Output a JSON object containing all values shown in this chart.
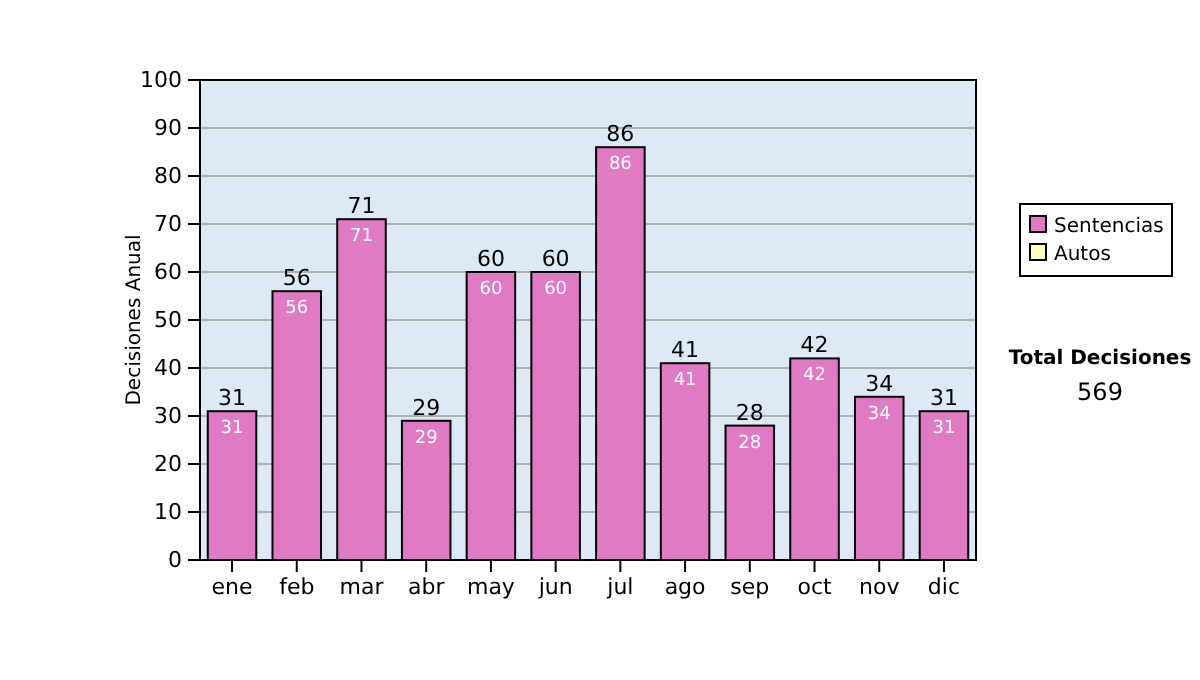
{
  "chart_data": {
    "type": "bar",
    "ylabel": "Decisiones Anual",
    "categories": [
      "ene",
      "feb",
      "mar",
      "abr",
      "may",
      "jun",
      "jul",
      "ago",
      "sep",
      "oct",
      "nov",
      "dic"
    ],
    "series": [
      {
        "name": "Sentencias",
        "color": "#e07ac4",
        "values": [
          31,
          56,
          71,
          29,
          60,
          60,
          86,
          41,
          28,
          42,
          34,
          31
        ],
        "value_labels": [
          "31",
          "56",
          "71",
          "29",
          "60",
          "60",
          "86",
          "41",
          "28",
          "42",
          "34",
          "31"
        ]
      },
      {
        "name": "Autos",
        "color": "#ffffc0",
        "values": [
          0,
          0,
          0,
          0,
          0,
          0,
          0,
          0,
          0,
          0,
          0,
          0
        ]
      }
    ],
    "stacked": true,
    "totals": [
      "31",
      "56",
      "71",
      "29",
      "60",
      "60",
      "86",
      "41",
      "28",
      "42",
      "34",
      "31"
    ],
    "ylim": [
      0,
      100
    ],
    "yticks": [
      0,
      10,
      20,
      30,
      40,
      50,
      60,
      70,
      80,
      90,
      100
    ],
    "grid": "y",
    "legend": "right",
    "annotations": [
      "Total Decisiones",
      "569"
    ]
  }
}
